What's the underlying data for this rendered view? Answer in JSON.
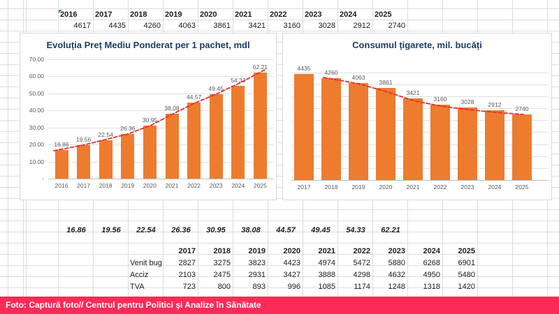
{
  "sheet": {
    "top_table": {
      "years": [
        "2016",
        "2017",
        "2018",
        "2019",
        "2020",
        "2021",
        "2022",
        "2023",
        "2024",
        "2025"
      ],
      "values": [
        "4617",
        "4435",
        "4260",
        "4063",
        "3861",
        "3421",
        "3160",
        "3028",
        "2912",
        "2740"
      ]
    },
    "price_row": [
      "16.86",
      "19.56",
      "22.54",
      "26.36",
      "30.95",
      "38.08",
      "44.57",
      "49.45",
      "54.33",
      "62.21"
    ],
    "bottom_table": {
      "years": [
        "2017",
        "2018",
        "2019",
        "2020",
        "2021",
        "2022",
        "2023",
        "2024",
        "2025"
      ],
      "rows": [
        {
          "label": "Venit bug",
          "values": [
            "2827",
            "3275",
            "3823",
            "4423",
            "4974",
            "5472",
            "5880",
            "6268",
            "6901"
          ]
        },
        {
          "label": "Acciz",
          "values": [
            "2103",
            "2475",
            "2931",
            "3427",
            "3888",
            "4298",
            "4632",
            "4950",
            "5480"
          ]
        },
        {
          "label": "TVA",
          "values": [
            "723",
            "800",
            "893",
            "996",
            "1085",
            "1174",
            "1248",
            "1318",
            "1420"
          ]
        }
      ]
    }
  },
  "chart_data": [
    {
      "type": "bar",
      "title": "Evoluția Preț Mediu Ponderat per 1 pachet, mdl",
      "categories": [
        "2016",
        "2017",
        "2018",
        "2019",
        "2020",
        "2021",
        "2022",
        "2023",
        "2024",
        "2025"
      ],
      "values": [
        16.86,
        19.56,
        22.54,
        26.36,
        30.95,
        38.08,
        44.57,
        49.45,
        54.33,
        62.21
      ],
      "data_labels": [
        "16.86",
        "19.56",
        "22.54",
        "26.36",
        "30.95",
        "38.08",
        "44.57",
        "49.45",
        "54.33",
        "62.21"
      ],
      "xlabel": "",
      "ylabel": "",
      "ylim": [
        0,
        70
      ],
      "yticks": [
        "70.00",
        "60.00",
        "50.00",
        "40.00",
        "30.00",
        "20.00",
        "10.00",
        "-"
      ],
      "ytick_values": [
        70,
        60,
        50,
        40,
        30,
        20,
        10,
        0
      ],
      "grid": true,
      "legend": "none",
      "bar_color": "#ED7C2F",
      "trendline": {
        "style": "dashed",
        "color": "#E62E2E"
      }
    },
    {
      "type": "bar",
      "title": "Consumul țigarete, mil. bucăți",
      "categories": [
        "2017",
        "2018",
        "2019",
        "2020",
        "2021",
        "2022",
        "2023",
        "2024",
        "2025"
      ],
      "values": [
        4435,
        4260,
        4063,
        3861,
        3421,
        3160,
        3028,
        2912,
        2740
      ],
      "data_labels": [
        "4435",
        "4260",
        "4063",
        "3861",
        "3421",
        "3160",
        "3028",
        "2912",
        "2740"
      ],
      "xlabel": "",
      "ylabel": "",
      "ylim": [
        0,
        4500
      ],
      "yticks": [],
      "gridline_step": 500,
      "grid": true,
      "legend": "none",
      "bar_color": "#ED7C2F",
      "trendline": {
        "style": "dashed",
        "color": "#E62E2E"
      }
    }
  ],
  "footer": {
    "text": "Foto: Captură foto// Centrul pentru Politici şi Analize în Sănătate",
    "bg_color": "#FA2B57"
  },
  "colors": {
    "bar_orange": "#ED7C2F",
    "trend_red": "#E62E2E",
    "title_navy": "#1F3C64",
    "footer_pink": "#FA2B57",
    "sheet_gridline": "#DCDCDC"
  }
}
